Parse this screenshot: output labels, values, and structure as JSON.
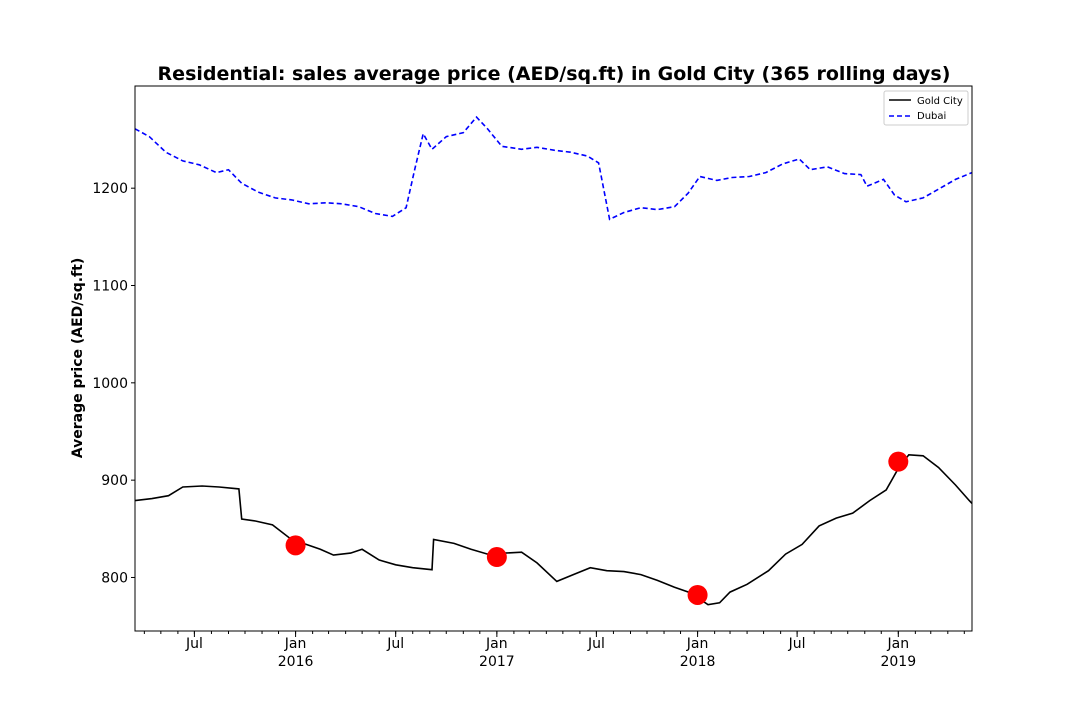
{
  "chart_data": {
    "type": "line",
    "title": "Residential: sales average price (AED/sq.ft) in Gold City (365 rolling days)",
    "xlabel": "",
    "ylabel": "Average price (AED/sq.ft)",
    "xlim": [
      "2015-03-15",
      "2019-05-15"
    ],
    "ylim": [
      745,
      1305
    ],
    "y_ticks": [
      800,
      900,
      1000,
      1100,
      1200
    ],
    "x_ticks": [
      {
        "date": "2015-07-01",
        "label": "Jul",
        "sub": ""
      },
      {
        "date": "2016-01-01",
        "label": "Jan",
        "sub": "2016"
      },
      {
        "date": "2016-07-01",
        "label": "Jul",
        "sub": ""
      },
      {
        "date": "2017-01-01",
        "label": "Jan",
        "sub": "2017"
      },
      {
        "date": "2017-07-01",
        "label": "Jul",
        "sub": ""
      },
      {
        "date": "2018-01-01",
        "label": "Jan",
        "sub": "2018"
      },
      {
        "date": "2018-07-01",
        "label": "Jul",
        "sub": ""
      },
      {
        "date": "2019-01-01",
        "label": "Jan",
        "sub": "2019"
      }
    ],
    "legend": {
      "placement": "top-right"
    },
    "series": [
      {
        "name": "Gold City",
        "color": "#000000",
        "style": "solid",
        "points": [
          [
            "2015-03-15",
            879
          ],
          [
            "2015-04-15",
            881
          ],
          [
            "2015-05-15",
            884
          ],
          [
            "2015-06-10",
            893
          ],
          [
            "2015-07-15",
            894
          ],
          [
            "2015-08-15",
            893
          ],
          [
            "2015-09-20",
            891
          ],
          [
            "2015-09-25",
            860
          ],
          [
            "2015-10-20",
            858
          ],
          [
            "2015-11-20",
            854
          ],
          [
            "2015-12-20",
            841
          ],
          [
            "2016-01-15",
            835
          ],
          [
            "2016-02-15",
            829
          ],
          [
            "2016-03-10",
            823
          ],
          [
            "2016-04-10",
            825
          ],
          [
            "2016-05-01",
            829
          ],
          [
            "2016-06-01",
            818
          ],
          [
            "2016-07-01",
            813
          ],
          [
            "2016-08-01",
            810
          ],
          [
            "2016-09-05",
            808
          ],
          [
            "2016-09-08",
            839
          ],
          [
            "2016-10-15",
            835
          ],
          [
            "2016-11-15",
            829
          ],
          [
            "2016-12-15",
            824
          ],
          [
            "2017-01-15",
            825
          ],
          [
            "2017-02-15",
            826
          ],
          [
            "2017-03-15",
            815
          ],
          [
            "2017-04-20",
            796
          ],
          [
            "2017-05-20",
            803
          ],
          [
            "2017-06-20",
            810
          ],
          [
            "2017-07-20",
            807
          ],
          [
            "2017-08-20",
            806
          ],
          [
            "2017-09-20",
            803
          ],
          [
            "2017-10-20",
            797
          ],
          [
            "2017-11-20",
            790
          ],
          [
            "2017-12-20",
            784
          ],
          [
            "2018-01-20",
            772
          ],
          [
            "2018-02-10",
            774
          ],
          [
            "2018-03-01",
            785
          ],
          [
            "2018-04-01",
            793
          ],
          [
            "2018-05-10",
            807
          ],
          [
            "2018-06-10",
            824
          ],
          [
            "2018-07-10",
            834
          ],
          [
            "2018-08-10",
            853
          ],
          [
            "2018-09-10",
            861
          ],
          [
            "2018-10-10",
            866
          ],
          [
            "2018-11-10",
            879
          ],
          [
            "2018-12-10",
            890
          ],
          [
            "2019-01-01",
            912
          ],
          [
            "2019-01-20",
            926
          ],
          [
            "2019-02-15",
            925
          ],
          [
            "2019-03-15",
            913
          ],
          [
            "2019-04-15",
            895
          ],
          [
            "2019-05-10",
            879
          ],
          [
            "2019-05-15",
            876
          ]
        ]
      },
      {
        "name": "Dubai",
        "color": "#0000ff",
        "style": "dashed",
        "points": [
          [
            "2015-03-15",
            1261
          ],
          [
            "2015-04-10",
            1253
          ],
          [
            "2015-05-10",
            1237
          ],
          [
            "2015-06-10",
            1228
          ],
          [
            "2015-07-10",
            1224
          ],
          [
            "2015-08-10",
            1216
          ],
          [
            "2015-09-01",
            1219
          ],
          [
            "2015-09-25",
            1205
          ],
          [
            "2015-10-25",
            1196
          ],
          [
            "2015-11-25",
            1190
          ],
          [
            "2015-12-25",
            1188
          ],
          [
            "2016-01-25",
            1184
          ],
          [
            "2016-02-25",
            1185
          ],
          [
            "2016-03-25",
            1184
          ],
          [
            "2016-04-25",
            1181
          ],
          [
            "2016-05-25",
            1174
          ],
          [
            "2016-06-25",
            1171
          ],
          [
            "2016-07-20",
            1180
          ],
          [
            "2016-08-05",
            1220
          ],
          [
            "2016-08-20",
            1256
          ],
          [
            "2016-09-05",
            1240
          ],
          [
            "2016-10-01",
            1253
          ],
          [
            "2016-11-01",
            1257
          ],
          [
            "2016-11-25",
            1273
          ],
          [
            "2016-12-15",
            1261
          ],
          [
            "2017-01-10",
            1243
          ],
          [
            "2017-02-15",
            1240
          ],
          [
            "2017-03-15",
            1242
          ],
          [
            "2017-04-15",
            1239
          ],
          [
            "2017-05-15",
            1237
          ],
          [
            "2017-06-15",
            1233
          ],
          [
            "2017-07-05",
            1226
          ],
          [
            "2017-07-25",
            1168
          ],
          [
            "2017-08-20",
            1175
          ],
          [
            "2017-09-20",
            1180
          ],
          [
            "2017-10-20",
            1178
          ],
          [
            "2017-11-20",
            1181
          ],
          [
            "2017-12-15",
            1195
          ],
          [
            "2018-01-05",
            1212
          ],
          [
            "2018-02-05",
            1208
          ],
          [
            "2018-03-05",
            1211
          ],
          [
            "2018-04-05",
            1212
          ],
          [
            "2018-05-05",
            1216
          ],
          [
            "2018-06-05",
            1225
          ],
          [
            "2018-07-05",
            1230
          ],
          [
            "2018-07-25",
            1219
          ],
          [
            "2018-08-25",
            1222
          ],
          [
            "2018-09-25",
            1215
          ],
          [
            "2018-10-25",
            1214
          ],
          [
            "2018-11-05",
            1202
          ],
          [
            "2018-12-05",
            1209
          ],
          [
            "2018-12-25",
            1193
          ],
          [
            "2019-01-15",
            1186
          ],
          [
            "2019-02-15",
            1190
          ],
          [
            "2019-03-15",
            1199
          ],
          [
            "2019-04-15",
            1209
          ],
          [
            "2019-05-15",
            1216
          ]
        ]
      }
    ],
    "markers": {
      "color": "#ff0000",
      "points": [
        [
          "2016-01-01",
          833
        ],
        [
          "2017-01-01",
          821
        ],
        [
          "2018-01-01",
          782
        ],
        [
          "2019-01-01",
          919
        ]
      ]
    }
  }
}
